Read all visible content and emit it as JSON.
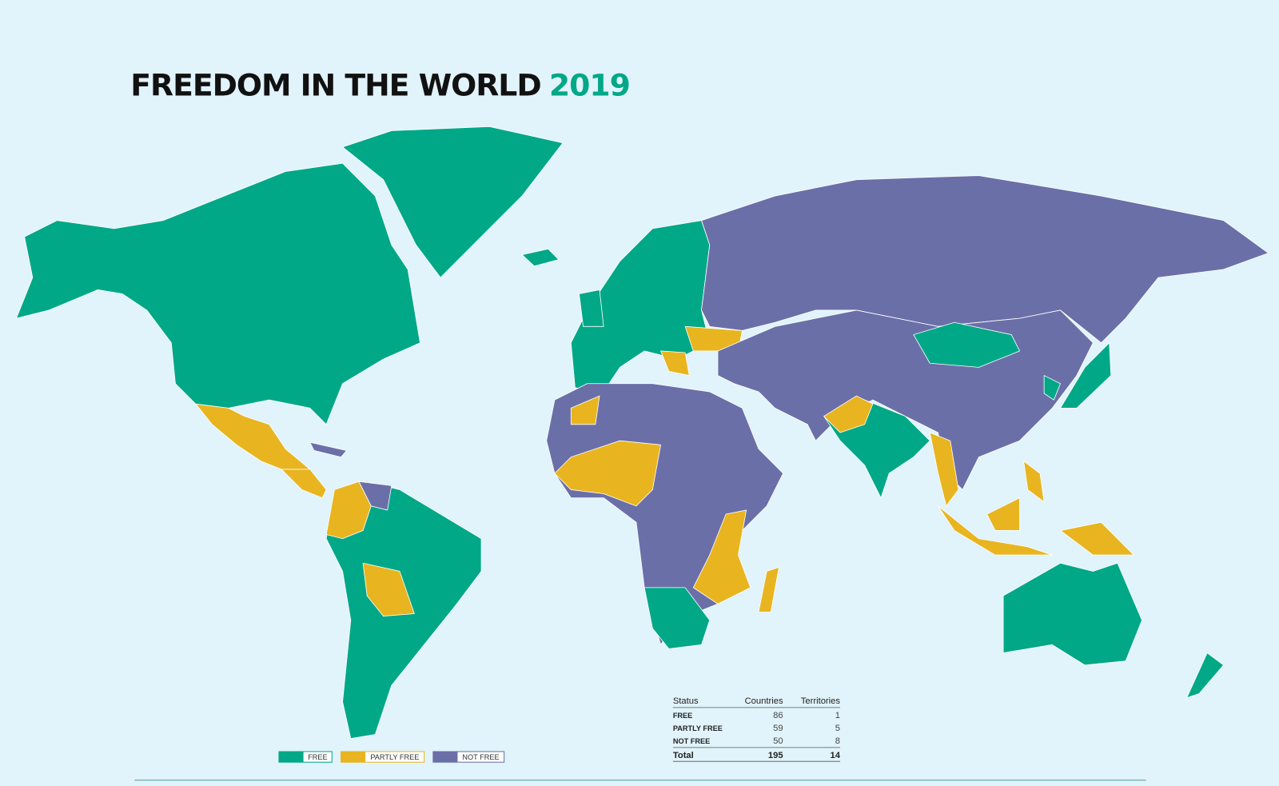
{
  "title": {
    "main": "FREEDOM IN THE WORLD",
    "year": "2019"
  },
  "legend": [
    {
      "label": "FREE",
      "color": "#00a887"
    },
    {
      "label": "PARTLY FREE",
      "color": "#e8b520"
    },
    {
      "label": "NOT FREE",
      "color": "#6b6fa8"
    }
  ],
  "table": {
    "headers": [
      "Status",
      "Countries",
      "Territories"
    ],
    "rows": [
      [
        "FREE",
        86,
        1
      ],
      [
        "PARTLY FREE",
        59,
        5
      ],
      [
        "NOT FREE",
        50,
        8
      ]
    ],
    "total": [
      "Total",
      195,
      14
    ]
  }
}
